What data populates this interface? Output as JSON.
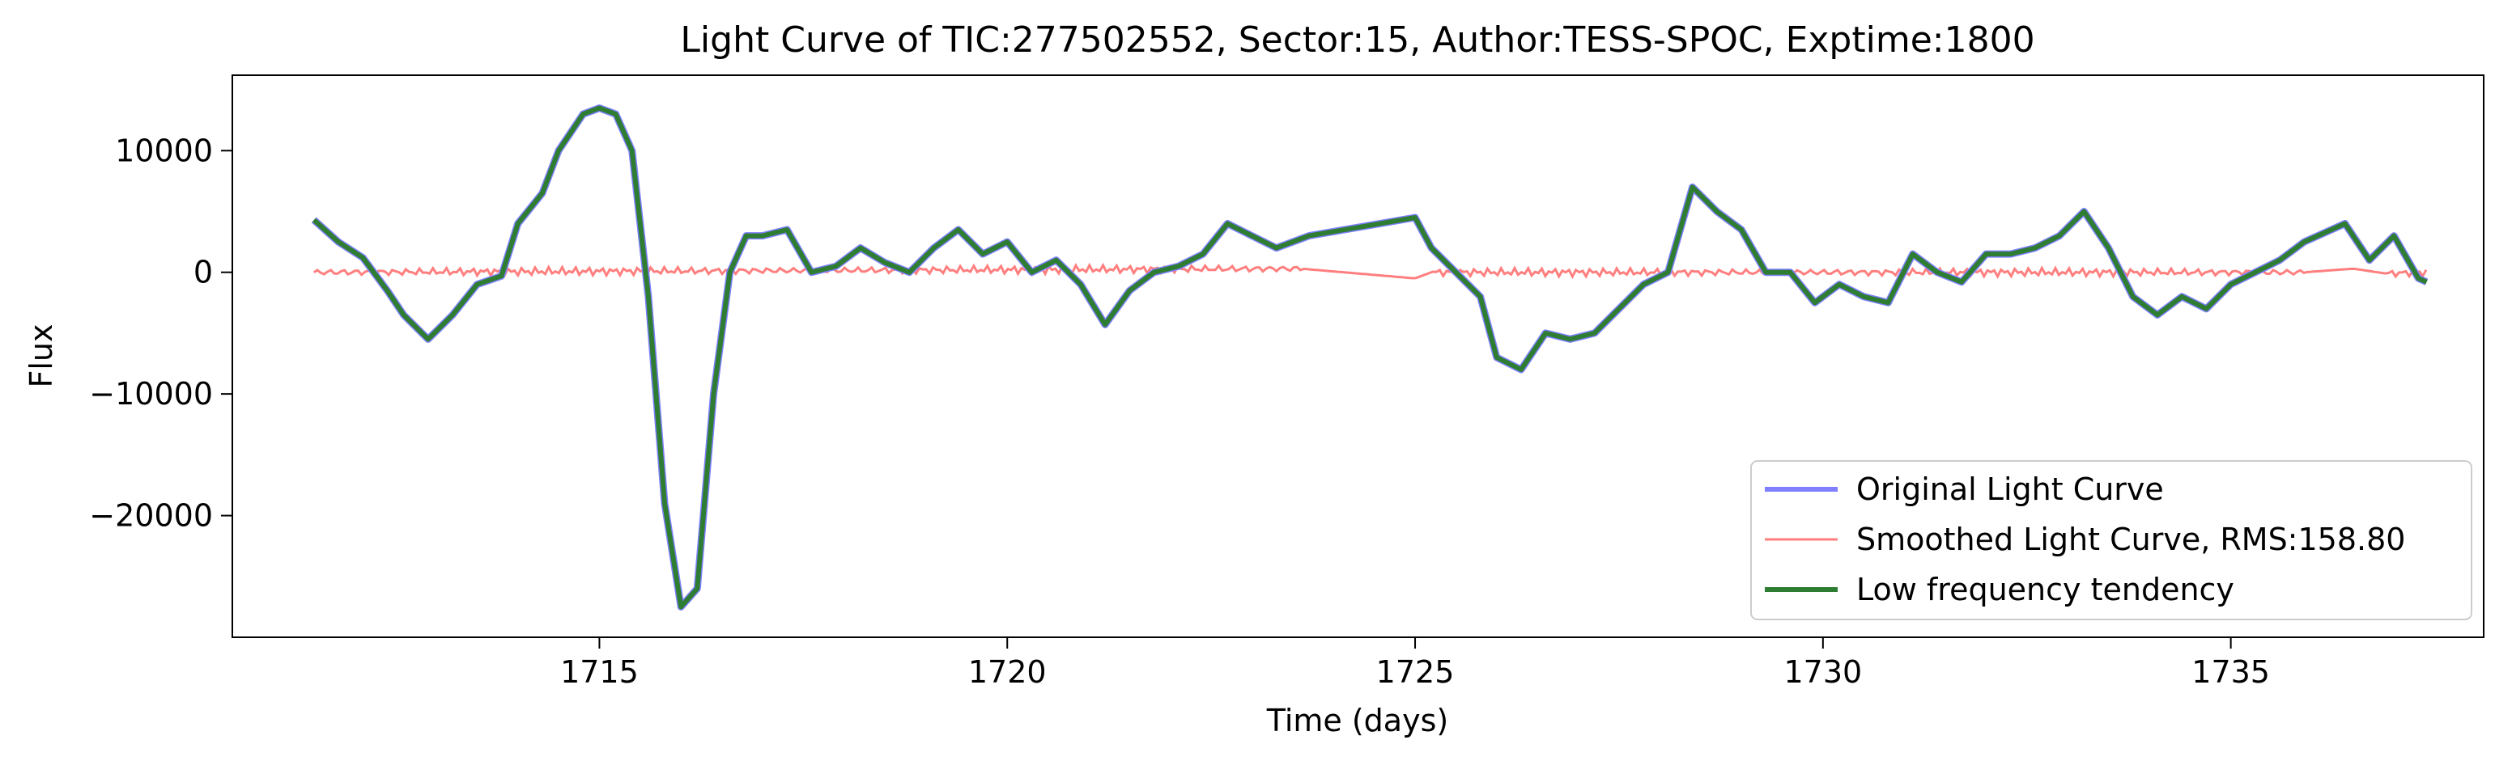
{
  "chart_data": {
    "type": "line",
    "title": "Light Curve of TIC:277502552, Sector:15, Author:TESS-SPOC, Exptime:1800",
    "xlabel": "Time (days)",
    "ylabel": "Flux",
    "xlim": [
      1710.5,
      1738.1
    ],
    "ylim": [
      -30000,
      16200
    ],
    "xticks": [
      1715,
      1720,
      1725,
      1730,
      1735
    ],
    "xtick_labels": [
      "1715",
      "1720",
      "1725",
      "1730",
      "1735"
    ],
    "yticks": [
      10000,
      0,
      -10000,
      -20000
    ],
    "ytick_labels": [
      "10000",
      "0",
      "−10000",
      "−20000"
    ],
    "grid": false,
    "legend_position": "bottom-right",
    "series": [
      {
        "name": "Original Light Curve",
        "color": "#7f7fff",
        "x": [
          1711.5,
          1711.8,
          1712.1,
          1712.4,
          1712.6,
          1712.9,
          1713.2,
          1713.5,
          1713.8,
          1714.0,
          1714.3,
          1714.5,
          1714.8,
          1715.0,
          1715.2,
          1715.4,
          1715.6,
          1715.8,
          1716.0,
          1716.2,
          1716.4,
          1716.6,
          1716.8,
          1717.0,
          1717.3,
          1717.6,
          1717.9,
          1718.2,
          1718.5,
          1718.8,
          1719.1,
          1719.4,
          1719.7,
          1720.0,
          1720.3,
          1720.6,
          1720.9,
          1721.2,
          1721.5,
          1721.8,
          1722.1,
          1722.4,
          1722.7,
          1723.0,
          1723.3,
          1723.7,
          1725.0,
          1725.2,
          1725.5,
          1725.8,
          1726.0,
          1726.3,
          1726.6,
          1726.9,
          1727.2,
          1727.5,
          1727.8,
          1728.1,
          1728.4,
          1728.7,
          1729.0,
          1729.3,
          1729.6,
          1729.9,
          1730.2,
          1730.5,
          1730.8,
          1731.1,
          1731.4,
          1731.7,
          1732.0,
          1732.3,
          1732.6,
          1732.9,
          1733.2,
          1733.5,
          1733.8,
          1734.1,
          1734.4,
          1734.7,
          1735.0,
          1735.3,
          1735.6,
          1735.9,
          1736.4,
          1736.7,
          1737.0,
          1737.3,
          1737.4
        ],
        "y": [
          4300,
          2500,
          1200,
          -1500,
          -3500,
          -5500,
          -3500,
          -1000,
          -300,
          4000,
          6500,
          10000,
          13000,
          13500,
          13000,
          10000,
          -2000,
          -19000,
          -27500,
          -26000,
          -10000,
          0,
          3000,
          3000,
          3500,
          0,
          500,
          2000,
          800,
          0,
          2000,
          3500,
          1500,
          2500,
          0,
          1000,
          -1000,
          -4300,
          -1500,
          0,
          500,
          1500,
          4000,
          3000,
          2000,
          3000,
          4500,
          2000,
          0,
          -2000,
          -7000,
          -8000,
          -5000,
          -5500,
          -5000,
          -3000,
          -1000,
          0,
          7000,
          5000,
          3500,
          0,
          0,
          -2500,
          -1000,
          -2000,
          -2500,
          1500,
          0,
          -800,
          1500,
          1500,
          2000,
          3000,
          5000,
          2000,
          -2000,
          -3500,
          -2000,
          -3000,
          -1000,
          0,
          1000,
          2500,
          4000,
          1000,
          3000,
          -500,
          -800
        ]
      },
      {
        "name": "Smoothed Light Curve, RMS:158.80",
        "color": "#ff7f7f",
        "x": [
          1711.5,
          1723.6,
          1725.0,
          1725.2,
          1735.9,
          1736.5,
          1736.9,
          1737.4
        ],
        "y": [
          0,
          300,
          -500,
          0,
          0,
          300,
          -100,
          0
        ]
      },
      {
        "name": "Low frequency tendency",
        "color": "#2e7d32",
        "x": [
          1711.5,
          1711.8,
          1712.1,
          1712.4,
          1712.6,
          1712.9,
          1713.2,
          1713.5,
          1713.8,
          1714.0,
          1714.3,
          1714.5,
          1714.8,
          1715.0,
          1715.2,
          1715.4,
          1715.6,
          1715.8,
          1716.0,
          1716.2,
          1716.4,
          1716.6,
          1716.8,
          1717.0,
          1717.3,
          1717.6,
          1717.9,
          1718.2,
          1718.5,
          1718.8,
          1719.1,
          1719.4,
          1719.7,
          1720.0,
          1720.3,
          1720.6,
          1720.9,
          1721.2,
          1721.5,
          1721.8,
          1722.1,
          1722.4,
          1722.7,
          1723.0,
          1723.3,
          1723.7,
          1725.0,
          1725.2,
          1725.5,
          1725.8,
          1726.0,
          1726.3,
          1726.6,
          1726.9,
          1727.2,
          1727.5,
          1727.8,
          1728.1,
          1728.4,
          1728.7,
          1729.0,
          1729.3,
          1729.6,
          1729.9,
          1730.2,
          1730.5,
          1730.8,
          1731.1,
          1731.4,
          1731.7,
          1732.0,
          1732.3,
          1732.6,
          1732.9,
          1733.2,
          1733.5,
          1733.8,
          1734.1,
          1734.4,
          1734.7,
          1735.0,
          1735.3,
          1735.6,
          1735.9,
          1736.4,
          1736.7,
          1737.0,
          1737.3,
          1737.4
        ],
        "y": [
          4300,
          2500,
          1200,
          -1500,
          -3500,
          -5500,
          -3500,
          -1000,
          -300,
          4000,
          6500,
          10000,
          13000,
          13500,
          13000,
          10000,
          -2000,
          -19000,
          -27500,
          -26000,
          -10000,
          0,
          3000,
          3000,
          3500,
          0,
          500,
          2000,
          800,
          0,
          2000,
          3500,
          1500,
          2500,
          0,
          1000,
          -1000,
          -4300,
          -1500,
          0,
          500,
          1500,
          4000,
          3000,
          2000,
          3000,
          4500,
          2000,
          0,
          -2000,
          -7000,
          -8000,
          -5000,
          -5500,
          -5000,
          -3000,
          -1000,
          0,
          7000,
          5000,
          3500,
          0,
          0,
          -2500,
          -1000,
          -2000,
          -2500,
          1500,
          0,
          -800,
          1500,
          1500,
          2000,
          3000,
          5000,
          2000,
          -2000,
          -3500,
          -2000,
          -3000,
          -1000,
          0,
          1000,
          2500,
          4000,
          1000,
          3000,
          -500,
          -800
        ]
      }
    ],
    "smoothed_ripple": {
      "amplitude": 350,
      "gap_start": 1723.6,
      "gap_end": 1725.2,
      "gap2_start": 1735.9,
      "gap2_end": 1736.9
    }
  }
}
